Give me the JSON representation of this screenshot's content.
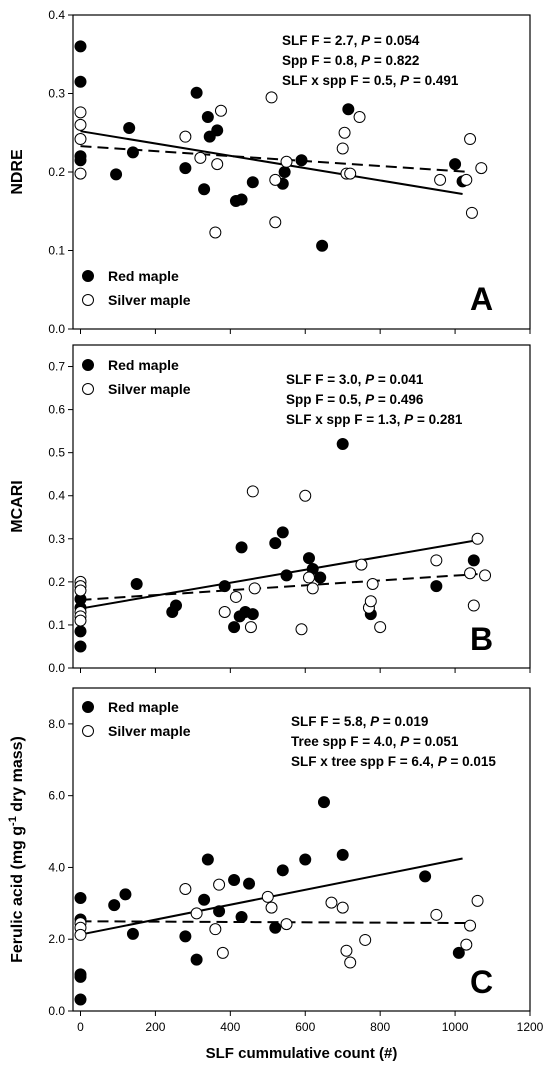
{
  "chart_data": [
    {
      "type": "scatter",
      "panel_letter": "A",
      "ylabel": "NDRE",
      "ylim": [
        0,
        0.4
      ],
      "yticks": [
        "0.0",
        "0.1",
        "0.2",
        "0.3",
        "0.4"
      ],
      "xlim": [
        -20,
        1200
      ],
      "stats": [
        {
          "a": "SLF F = 2.7, ",
          "p": "P",
          "b": " = 0.054"
        },
        {
          "a": "Spp F = 0.8, ",
          "p": "P",
          "b": " = 0.822"
        },
        {
          "a": "SLF x spp F = 0.5, ",
          "p": "P",
          "b": " = 0.491"
        }
      ],
      "legend": [
        "Red maple",
        "Silver maple"
      ],
      "legend_position": "bottom-left",
      "series": [
        {
          "name": "Red maple",
          "marker": "filled",
          "line": "solid",
          "fit": [
            [
              0,
              0.252
            ],
            [
              1020,
              0.172
            ]
          ],
          "points": [
            [
              0,
              0.36
            ],
            [
              0,
              0.315
            ],
            [
              0,
              0.22
            ],
            [
              0,
              0.215
            ],
            [
              95,
              0.197
            ],
            [
              130,
              0.256
            ],
            [
              140,
              0.225
            ],
            [
              310,
              0.301
            ],
            [
              280,
              0.205
            ],
            [
              340,
              0.27
            ],
            [
              330,
              0.178
            ],
            [
              345,
              0.245
            ],
            [
              365,
              0.253
            ],
            [
              415,
              0.163
            ],
            [
              430,
              0.165
            ],
            [
              460,
              0.187
            ],
            [
              540,
              0.185
            ],
            [
              545,
              0.2
            ],
            [
              590,
              0.215
            ],
            [
              645,
              0.106
            ],
            [
              715,
              0.28
            ],
            [
              1000,
              0.21
            ],
            [
              1020,
              0.188
            ]
          ]
        },
        {
          "name": "Silver maple",
          "marker": "open",
          "line": "dashed",
          "fit": [
            [
              0,
              0.233
            ],
            [
              1040,
              0.2
            ]
          ],
          "points": [
            [
              0,
              0.276
            ],
            [
              0,
              0.26
            ],
            [
              0,
              0.242
            ],
            [
              0,
              0.198
            ],
            [
              280,
              0.245
            ],
            [
              320,
              0.218
            ],
            [
              360,
              0.123
            ],
            [
              365,
              0.21
            ],
            [
              375,
              0.278
            ],
            [
              510,
              0.295
            ],
            [
              520,
              0.136
            ],
            [
              520,
              0.19
            ],
            [
              550,
              0.213
            ],
            [
              700,
              0.23
            ],
            [
              705,
              0.25
            ],
            [
              710,
              0.198
            ],
            [
              720,
              0.198
            ],
            [
              745,
              0.27
            ],
            [
              960,
              0.19
            ],
            [
              1030,
              0.19
            ],
            [
              1040,
              0.242
            ],
            [
              1045,
              0.148
            ],
            [
              1070,
              0.205
            ]
          ]
        }
      ]
    },
    {
      "type": "scatter",
      "panel_letter": "B",
      "ylabel": "MCARI",
      "ylim": [
        0,
        0.75
      ],
      "yticks": [
        "0.0",
        "0.1",
        "0.2",
        "0.3",
        "0.4",
        "0.5",
        "0.6",
        "0.7"
      ],
      "xlim": [
        -20,
        1200
      ],
      "stats": [
        {
          "a": "SLF F = 3.0, ",
          "p": "P",
          "b": " = 0.041"
        },
        {
          "a": "Spp F = 0.5, ",
          "p": "P",
          "b": " = 0.496"
        },
        {
          "a": "SLF x spp F = 1.3, ",
          "p": "P",
          "b": " = 0.281"
        }
      ],
      "legend": [
        "Red maple",
        "Silver maple"
      ],
      "legend_position": "top-left",
      "series": [
        {
          "name": "Red maple",
          "marker": "filled",
          "line": "solid",
          "fit": [
            [
              0,
              0.138
            ],
            [
              1060,
              0.297
            ]
          ],
          "points": [
            [
              0,
              0.16
            ],
            [
              0,
              0.14
            ],
            [
              0,
              0.085
            ],
            [
              0,
              0.05
            ],
            [
              150,
              0.195
            ],
            [
              245,
              0.13
            ],
            [
              255,
              0.145
            ],
            [
              385,
              0.19
            ],
            [
              410,
              0.095
            ],
            [
              425,
              0.12
            ],
            [
              430,
              0.28
            ],
            [
              440,
              0.13
            ],
            [
              460,
              0.125
            ],
            [
              520,
              0.29
            ],
            [
              540,
              0.315
            ],
            [
              550,
              0.215
            ],
            [
              610,
              0.255
            ],
            [
              620,
              0.23
            ],
            [
              640,
              0.21
            ],
            [
              700,
              0.52
            ],
            [
              775,
              0.125
            ],
            [
              950,
              0.19
            ],
            [
              1050,
              0.25
            ]
          ]
        },
        {
          "name": "Silver maple",
          "marker": "open",
          "line": "dashed",
          "fit": [
            [
              0,
              0.158
            ],
            [
              1060,
              0.218
            ]
          ],
          "points": [
            [
              0,
              0.2
            ],
            [
              0,
              0.19
            ],
            [
              0,
              0.18
            ],
            [
              0,
              0.13
            ],
            [
              0,
              0.12
            ],
            [
              0,
              0.11
            ],
            [
              385,
              0.13
            ],
            [
              415,
              0.165
            ],
            [
              455,
              0.095
            ],
            [
              460,
              0.41
            ],
            [
              465,
              0.185
            ],
            [
              590,
              0.09
            ],
            [
              600,
              0.4
            ],
            [
              610,
              0.21
            ],
            [
              620,
              0.185
            ],
            [
              750,
              0.24
            ],
            [
              770,
              0.14
            ],
            [
              775,
              0.155
            ],
            [
              780,
              0.195
            ],
            [
              800,
              0.095
            ],
            [
              950,
              0.25
            ],
            [
              1040,
              0.22
            ],
            [
              1050,
              0.145
            ],
            [
              1060,
              0.3
            ],
            [
              1080,
              0.215
            ]
          ]
        }
      ]
    },
    {
      "type": "scatter",
      "panel_letter": "C",
      "ylabel_main": "Ferulic acid (mg g",
      "ylabel_sup": "-1",
      "ylabel_tail": " dry mass)",
      "ylim": [
        0,
        9
      ],
      "yticks": [
        "0.0",
        "2.0",
        "4.0",
        "6.0",
        "8.0"
      ],
      "xlim": [
        -20,
        1200
      ],
      "xlabel": "SLF cummulative count (#)",
      "xticks": [
        "0",
        "200",
        "400",
        "600",
        "800",
        "1000",
        "1200"
      ],
      "stats": [
        {
          "a": "SLF F = 5.8, ",
          "p": "P",
          "b": " = 0.019"
        },
        {
          "a": "Tree spp F = 4.0, ",
          "p": "P",
          "b": " = 0.051"
        },
        {
          "a": "SLF x tree spp F = 6.4, ",
          "p": "P",
          "b": " = 0.015"
        }
      ],
      "legend": [
        "Red maple",
        "Silver maple"
      ],
      "legend_position": "top-left",
      "series": [
        {
          "name": "Red maple",
          "marker": "filled",
          "line": "solid",
          "fit": [
            [
              0,
              2.13
            ],
            [
              1020,
              4.25
            ]
          ],
          "points": [
            [
              0,
              3.15
            ],
            [
              0,
              2.55
            ],
            [
              0,
              1.02
            ],
            [
              0,
              0.95
            ],
            [
              0,
              0.32
            ],
            [
              90,
              2.95
            ],
            [
              120,
              3.25
            ],
            [
              140,
              2.15
            ],
            [
              280,
              2.08
            ],
            [
              310,
              1.43
            ],
            [
              330,
              3.1
            ],
            [
              340,
              4.22
            ],
            [
              370,
              2.78
            ],
            [
              410,
              3.65
            ],
            [
              430,
              2.62
            ],
            [
              450,
              3.55
            ],
            [
              520,
              2.32
            ],
            [
              540,
              3.92
            ],
            [
              600,
              4.22
            ],
            [
              650,
              5.82
            ],
            [
              700,
              4.35
            ],
            [
              920,
              3.75
            ],
            [
              1010,
              1.62
            ]
          ]
        },
        {
          "name": "Silver maple",
          "marker": "open",
          "line": "dashed",
          "fit": [
            [
              0,
              2.5
            ],
            [
              1050,
              2.45
            ]
          ],
          "points": [
            [
              0,
              2.45
            ],
            [
              0,
              2.32
            ],
            [
              0,
              2.12
            ],
            [
              280,
              3.4
            ],
            [
              310,
              2.72
            ],
            [
              360,
              2.28
            ],
            [
              370,
              3.52
            ],
            [
              380,
              1.62
            ],
            [
              500,
              3.18
            ],
            [
              510,
              2.88
            ],
            [
              550,
              2.42
            ],
            [
              670,
              3.02
            ],
            [
              700,
              2.88
            ],
            [
              710,
              1.68
            ],
            [
              720,
              1.35
            ],
            [
              760,
              1.98
            ],
            [
              950,
              2.68
            ],
            [
              1030,
              1.85
            ],
            [
              1040,
              2.38
            ],
            [
              1060,
              3.07
            ]
          ]
        }
      ]
    }
  ]
}
